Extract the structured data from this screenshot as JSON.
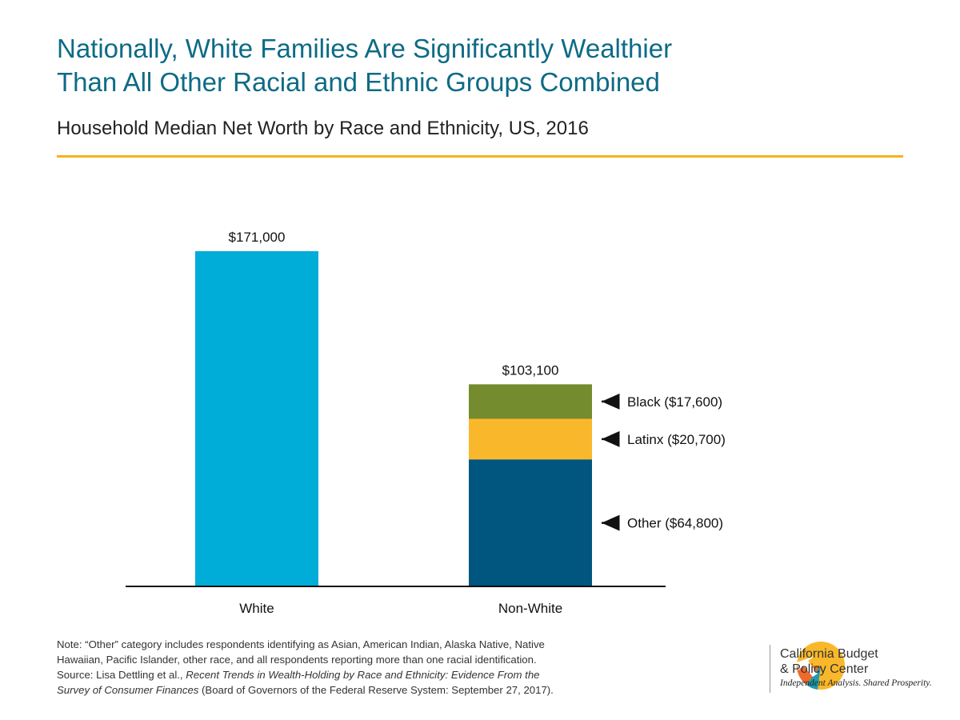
{
  "header": {
    "title_line1": "Nationally, White Families Are Significantly Wealthier",
    "title_line2": "Than All Other Racial and Ethnic Groups Combined",
    "subtitle": "Household Median Net Worth by Race and Ethnicity, US, 2016"
  },
  "colors": {
    "title": "#0d6b86",
    "rule": "#f5b31c",
    "white_bar": "#00acd8",
    "black": "#748c2e",
    "latinx": "#f9b82b",
    "other": "#00567f"
  },
  "chart_data": {
    "type": "bar",
    "stacked": true,
    "categories": [
      "White",
      "Non-White"
    ],
    "totals": [
      171000,
      103100
    ],
    "total_labels": [
      "$171,000",
      "$103,100"
    ],
    "ylim": [
      0,
      171000
    ],
    "grid": false,
    "series": [
      {
        "name": "White",
        "values": [
          171000,
          0
        ],
        "color": "#00acd8"
      },
      {
        "name": "Other",
        "values": [
          0,
          64800
        ],
        "color": "#00567f",
        "annotation": "Other ($64,800)"
      },
      {
        "name": "Latinx",
        "values": [
          0,
          20700
        ],
        "color": "#f9b82b",
        "annotation": "Latinx ($20,700)"
      },
      {
        "name": "Black",
        "values": [
          0,
          17600
        ],
        "color": "#748c2e",
        "annotation": "Black ($17,600)"
      }
    ]
  },
  "notes": {
    "line1": "Note: “Other” category includes respondents identifying as Asian, American Indian, Alaska Native, Native",
    "line2": "Hawaiian, Pacific Islander, other race, and all respondents reporting more than one racial identification.",
    "line3_prefix": "Source: Lisa Dettling et al., ",
    "line3_italic": "Recent Trends in Wealth-Holding by Race and Ethnicity: Evidence From the",
    "line4_italic": "Survey of Consumer Finances",
    "line4_suffix": " (Board of Governors of the Federal Reserve System: September 27, 2017)."
  },
  "org": {
    "name_line1": "California Budget",
    "name_line2": "& Policy Center",
    "tagline": "Independent Analysis. Shared Prosperity."
  }
}
